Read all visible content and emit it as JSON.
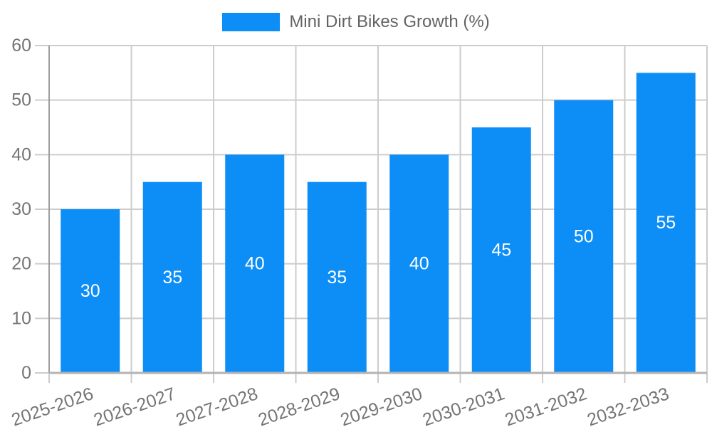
{
  "legend": {
    "label": "Mini Dirt Bikes Growth (%)",
    "swatch_color": "#0d8ef7"
  },
  "chart_data": {
    "type": "bar",
    "title": "",
    "categories": [
      "2025-2026",
      "2026-2027",
      "2027-2028",
      "2028-2029",
      "2029-2030",
      "2030-2031",
      "2031-2032",
      "2032-2033"
    ],
    "series": [
      {
        "name": "Mini Dirt Bikes Growth (%)",
        "values": [
          30,
          35,
          40,
          35,
          40,
          45,
          50,
          55
        ],
        "color": "#0d8ef7"
      }
    ],
    "bar_value_labels": [
      30,
      35,
      40,
      35,
      40,
      45,
      50,
      55
    ],
    "xlabel": "",
    "ylabel": "",
    "ylim": [
      0,
      60
    ],
    "yticks": [
      0,
      10,
      20,
      30,
      40,
      50,
      60
    ],
    "grid": true,
    "legend_position": "top",
    "x_label_rotation_deg": -19
  },
  "colors": {
    "bar": "#0d8ef7",
    "bar_label_text": "#ffffff",
    "axis_text": "#757575",
    "legend_text": "#636363",
    "gridline": "#cccccc",
    "baseline": "#b3b3b3",
    "y_axis_line": "#9e9e9e",
    "background": "#ffffff"
  }
}
